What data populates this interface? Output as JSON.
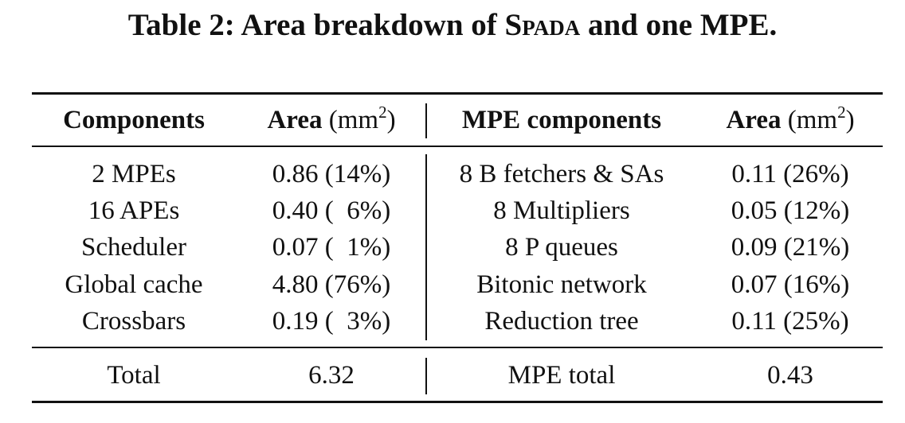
{
  "caption": {
    "prefix": "Table 2: Area breakdown of ",
    "system_name": "Spada",
    "suffix": " and one MPE."
  },
  "table": {
    "headers": {
      "components": "Components",
      "area_left": "Area",
      "mpe_components": "MPE components",
      "area_right": "Area",
      "unit_base": "mm",
      "unit_exp": "2"
    },
    "rows": [
      {
        "component": "2 MPEs",
        "area": "0.86 (14%)",
        "mpe_component": "8 B fetchers & SAs",
        "mpe_area": "0.11 (26%)"
      },
      {
        "component": "16 APEs",
        "area": "0.40 (  6%)",
        "mpe_component": "8 Multipliers",
        "mpe_area": "0.05 (12%)"
      },
      {
        "component": "Scheduler",
        "area": "0.07 (  1%)",
        "mpe_component": "8 P queues",
        "mpe_area": "0.09 (21%)"
      },
      {
        "component": "Global cache",
        "area": "4.80 (76%)",
        "mpe_component": "Bitonic network",
        "mpe_area": "0.07 (16%)"
      },
      {
        "component": "Crossbars",
        "area": "0.19 (  3%)",
        "mpe_component": "Reduction tree",
        "mpe_area": "0.11 (25%)"
      }
    ],
    "total": {
      "label": "Total",
      "area": "6.32",
      "mpe_label": "MPE total",
      "mpe_area": "0.43"
    }
  }
}
